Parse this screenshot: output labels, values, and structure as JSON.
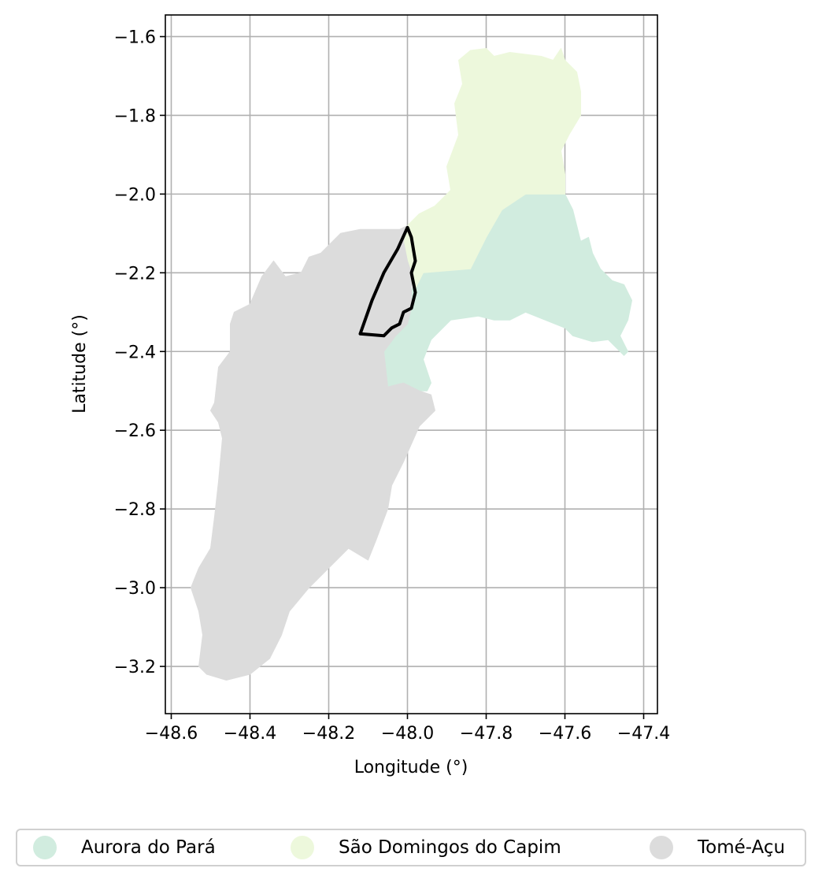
{
  "chart_data": {
    "type": "map",
    "xlabel": "Longitude (°)",
    "ylabel": "Latitude (°)",
    "xlim": [
      -48.615,
      -47.365
    ],
    "ylim": [
      -3.32,
      -1.545
    ],
    "x_ticks": [
      "−48.6",
      "−48.4",
      "−48.2",
      "−48.0",
      "−47.8",
      "−47.6",
      "−47.4"
    ],
    "x_tick_values": [
      -48.6,
      -48.4,
      -48.2,
      -48.0,
      -47.8,
      -47.6,
      -47.4
    ],
    "y_ticks": [
      "−1.6",
      "−1.8",
      "−2.0",
      "−2.2",
      "−2.4",
      "−2.6",
      "−2.8",
      "−3.0",
      "−3.2"
    ],
    "y_tick_values": [
      -1.6,
      -1.8,
      -2.0,
      -2.2,
      -2.4,
      -2.6,
      -2.8,
      -3.0,
      -3.2
    ],
    "grid": true,
    "legend_position": "bottom",
    "regions": [
      {
        "name": "Aurora do Pará",
        "color": "#d1ecdf",
        "polygon": [
          [
            -47.99,
            -2.245
          ],
          [
            -47.96,
            -2.2
          ],
          [
            -47.84,
            -2.19
          ],
          [
            -47.8,
            -2.11
          ],
          [
            -47.76,
            -2.04
          ],
          [
            -47.7,
            -2.0
          ],
          [
            -47.6,
            -2.0
          ],
          [
            -47.58,
            -2.04
          ],
          [
            -47.56,
            -2.12
          ],
          [
            -47.54,
            -2.11
          ],
          [
            -47.53,
            -2.15
          ],
          [
            -47.51,
            -2.19
          ],
          [
            -47.48,
            -2.22
          ],
          [
            -47.45,
            -2.23
          ],
          [
            -47.43,
            -2.27
          ],
          [
            -47.44,
            -2.32
          ],
          [
            -47.46,
            -2.36
          ],
          [
            -47.44,
            -2.4
          ],
          [
            -47.45,
            -2.41
          ],
          [
            -47.49,
            -2.37
          ],
          [
            -47.53,
            -2.375
          ],
          [
            -47.58,
            -2.36
          ],
          [
            -47.6,
            -2.34
          ],
          [
            -47.65,
            -2.32
          ],
          [
            -47.7,
            -2.3
          ],
          [
            -47.74,
            -2.32
          ],
          [
            -47.78,
            -2.32
          ],
          [
            -47.82,
            -2.31
          ],
          [
            -47.89,
            -2.32
          ],
          [
            -47.94,
            -2.37
          ],
          [
            -47.96,
            -2.42
          ],
          [
            -47.94,
            -2.48
          ],
          [
            -47.95,
            -2.5
          ],
          [
            -47.97,
            -2.5
          ],
          [
            -48.01,
            -2.48
          ],
          [
            -48.05,
            -2.49
          ],
          [
            -48.06,
            -2.4
          ],
          [
            -48.03,
            -2.36
          ],
          [
            -48.0,
            -2.33
          ],
          [
            -47.99,
            -2.29
          ]
        ]
      },
      {
        "name": "São Domingos do Capim",
        "color": "#edf8dc",
        "polygon": [
          [
            -47.98,
            -2.24
          ],
          [
            -47.96,
            -2.2
          ],
          [
            -47.84,
            -2.19
          ],
          [
            -47.8,
            -2.11
          ],
          [
            -47.76,
            -2.04
          ],
          [
            -47.7,
            -2.0
          ],
          [
            -47.6,
            -2.0
          ],
          [
            -47.6,
            -1.95
          ],
          [
            -47.61,
            -1.89
          ],
          [
            -47.59,
            -1.85
          ],
          [
            -47.56,
            -1.8
          ],
          [
            -47.56,
            -1.74
          ],
          [
            -47.57,
            -1.69
          ],
          [
            -47.6,
            -1.66
          ],
          [
            -47.61,
            -1.63
          ],
          [
            -47.63,
            -1.66
          ],
          [
            -47.66,
            -1.65
          ],
          [
            -47.7,
            -1.645
          ],
          [
            -47.74,
            -1.64
          ],
          [
            -47.78,
            -1.65
          ],
          [
            -47.8,
            -1.63
          ],
          [
            -47.84,
            -1.635
          ],
          [
            -47.87,
            -1.66
          ],
          [
            -47.86,
            -1.72
          ],
          [
            -47.88,
            -1.77
          ],
          [
            -47.87,
            -1.85
          ],
          [
            -47.9,
            -1.93
          ],
          [
            -47.89,
            -1.99
          ],
          [
            -47.93,
            -2.03
          ],
          [
            -47.97,
            -2.05
          ],
          [
            -48.0,
            -2.08
          ],
          [
            -48.01,
            -2.12
          ],
          [
            -48.0,
            -2.17
          ],
          [
            -47.99,
            -2.2
          ]
        ]
      },
      {
        "name": "Tomé-Açu",
        "color": "#dcdcdc",
        "polygon": [
          [
            -48.06,
            -2.09
          ],
          [
            -48.12,
            -2.09
          ],
          [
            -48.17,
            -2.1
          ],
          [
            -48.22,
            -2.15
          ],
          [
            -48.25,
            -2.16
          ],
          [
            -48.27,
            -2.2
          ],
          [
            -48.31,
            -2.21
          ],
          [
            -48.34,
            -2.17
          ],
          [
            -48.37,
            -2.21
          ],
          [
            -48.4,
            -2.28
          ],
          [
            -48.44,
            -2.3
          ],
          [
            -48.45,
            -2.33
          ],
          [
            -48.45,
            -2.4
          ],
          [
            -48.48,
            -2.44
          ],
          [
            -48.49,
            -2.53
          ],
          [
            -48.5,
            -2.55
          ],
          [
            -48.48,
            -2.58
          ],
          [
            -48.47,
            -2.62
          ],
          [
            -48.48,
            -2.73
          ],
          [
            -48.49,
            -2.82
          ],
          [
            -48.5,
            -2.9
          ],
          [
            -48.53,
            -2.95
          ],
          [
            -48.55,
            -3.0
          ],
          [
            -48.53,
            -3.06
          ],
          [
            -48.52,
            -3.12
          ],
          [
            -48.53,
            -3.2
          ],
          [
            -48.51,
            -3.22
          ],
          [
            -48.46,
            -3.235
          ],
          [
            -48.4,
            -3.22
          ],
          [
            -48.35,
            -3.18
          ],
          [
            -48.32,
            -3.12
          ],
          [
            -48.3,
            -3.06
          ],
          [
            -48.25,
            -3.0
          ],
          [
            -48.2,
            -2.95
          ],
          [
            -48.15,
            -2.9
          ],
          [
            -48.1,
            -2.93
          ],
          [
            -48.08,
            -2.88
          ],
          [
            -48.05,
            -2.8
          ],
          [
            -48.04,
            -2.74
          ],
          [
            -48.01,
            -2.68
          ],
          [
            -47.97,
            -2.59
          ],
          [
            -47.93,
            -2.55
          ],
          [
            -47.94,
            -2.51
          ],
          [
            -47.97,
            -2.5
          ],
          [
            -48.01,
            -2.48
          ],
          [
            -48.05,
            -2.49
          ],
          [
            -48.06,
            -2.4
          ],
          [
            -48.03,
            -2.36
          ],
          [
            -48.0,
            -2.33
          ],
          [
            -47.99,
            -2.29
          ],
          [
            -47.99,
            -2.2
          ],
          [
            -48.0,
            -2.17
          ],
          [
            -48.01,
            -2.12
          ],
          [
            -48.0,
            -2.08
          ],
          [
            -48.02,
            -2.09
          ]
        ]
      }
    ],
    "outline": [
      [
        -48.12,
        -2.355
      ],
      [
        -48.06,
        -2.36
      ],
      [
        -48.04,
        -2.34
      ],
      [
        -48.02,
        -2.33
      ],
      [
        -48.01,
        -2.3
      ],
      [
        -47.99,
        -2.29
      ],
      [
        -47.98,
        -2.25
      ],
      [
        -47.99,
        -2.2
      ],
      [
        -47.98,
        -2.17
      ],
      [
        -47.985,
        -2.14
      ],
      [
        -47.99,
        -2.11
      ],
      [
        -48.0,
        -2.085
      ],
      [
        -48.025,
        -2.14
      ],
      [
        -48.06,
        -2.2
      ],
      [
        -48.09,
        -2.27
      ],
      [
        -48.12,
        -2.355
      ]
    ],
    "legend": [
      "Aurora do Pará",
      "São Domingos do Capim",
      "Tomé-Açu"
    ]
  }
}
